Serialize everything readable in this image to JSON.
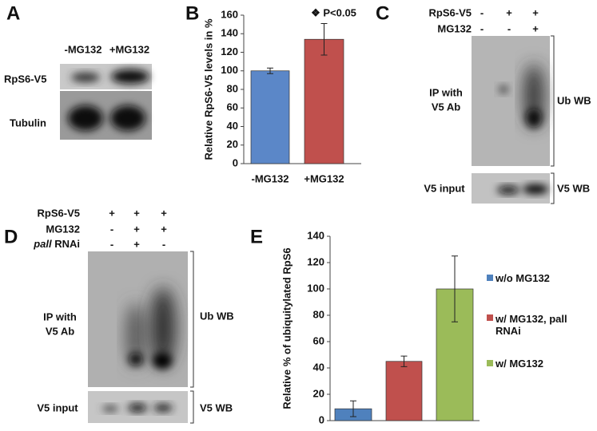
{
  "panels": {
    "labels": [
      "A",
      "B",
      "C",
      "D",
      "E"
    ]
  },
  "blot_a": {
    "lanes": [
      "-MG132",
      "+MG132"
    ],
    "rows": [
      "RpS6-V5",
      "Tubulin"
    ]
  },
  "blot_c": {
    "conditions": [
      {
        "name": "RpS6-V5",
        "signs": [
          "-",
          "+",
          "+"
        ]
      },
      {
        "name": "MG132",
        "signs": [
          "-",
          "-",
          "+"
        ]
      }
    ],
    "ip_label": [
      "IP with",
      "V5 Ab"
    ],
    "ip_wb": "Ub WB",
    "input_label": "V5 input",
    "input_wb": "V5 WB"
  },
  "blot_d": {
    "conditions": [
      {
        "name": "RpS6-V5",
        "signs": [
          "+",
          "+",
          "+"
        ]
      },
      {
        "name": "MG132",
        "signs": [
          "-",
          "+",
          "+"
        ]
      },
      {
        "gene": "pall",
        "name": "RNAi",
        "signs": [
          "-",
          "+",
          "-"
        ]
      }
    ],
    "ip_label": [
      "IP with",
      "V5 Ab"
    ],
    "ip_wb": "Ub WB",
    "input_label": "V5 input",
    "input_wb": "V5 WB"
  },
  "chart_data": [
    {
      "type": "bar",
      "ylabel": "Relative RpS6-V5 levels in %",
      "annotation": "❖ P<0.05",
      "categories": [
        "-MG132",
        "+MG132"
      ],
      "values": [
        100,
        134
      ],
      "errors": [
        3,
        17
      ],
      "colors": [
        "#5b87c8",
        "#c0504d"
      ],
      "ylim": [
        0,
        160
      ],
      "yticks": [
        0,
        20,
        40,
        60,
        80,
        100,
        120,
        140,
        160
      ]
    },
    {
      "type": "bar",
      "ylabel": "Relative % of ubiquitylated RpS6",
      "series": [
        {
          "name": "w/o MG132",
          "color": "#4f81bd",
          "values": [
            9
          ],
          "errors": [
            6
          ]
        },
        {
          "name": "w/ MG132, pall RNAi",
          "color": "#c0504d",
          "values": [
            45
          ],
          "errors": [
            4
          ]
        },
        {
          "name": "w/ MG132",
          "color": "#9bbb59",
          "values": [
            100
          ],
          "errors": [
            25
          ]
        }
      ],
      "ylim": [
        0,
        140
      ],
      "yticks": [
        0,
        20,
        40,
        60,
        80,
        100,
        120,
        140
      ],
      "legend": "right"
    }
  ]
}
